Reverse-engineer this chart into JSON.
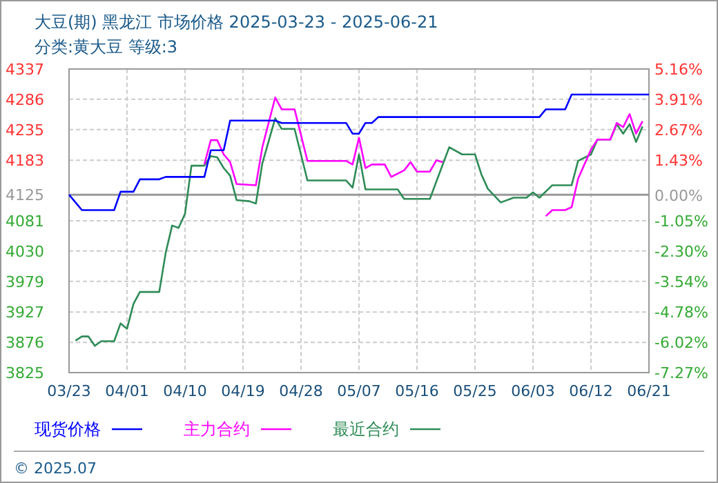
{
  "chart_data": {
    "type": "line",
    "title": "大豆(期) 黑龙江 市场价格 2025-03-23 - 2025-06-21",
    "subtitle": "分类:黄大豆 等级:3",
    "annotations": [
      "© 2025.07"
    ],
    "xlim": [
      "2025-03-23",
      "2025-06-21"
    ],
    "xticks": [
      {
        "value": "2025-03-23",
        "label": "03/23"
      },
      {
        "value": "2025-04-01",
        "label": "04/01"
      },
      {
        "value": "2025-04-10",
        "label": "04/10"
      },
      {
        "value": "2025-04-19",
        "label": "04/19"
      },
      {
        "value": "2025-04-28",
        "label": "04/28"
      },
      {
        "value": "2025-05-07",
        "label": "05/07"
      },
      {
        "value": "2025-05-16",
        "label": "05/16"
      },
      {
        "value": "2025-05-25",
        "label": "05/25"
      },
      {
        "value": "2025-06-03",
        "label": "06/03"
      },
      {
        "value": "2025-06-12",
        "label": "06/12"
      },
      {
        "value": "2025-06-21",
        "label": "06/21"
      }
    ],
    "ylim": [
      3825,
      4337
    ],
    "yticks": [
      4337,
      4286,
      4235,
      4183,
      4125,
      4081,
      4030,
      3979,
      3927,
      3876,
      3825
    ],
    "y2lim": [
      -7.27,
      5.16
    ],
    "y2ticks": [
      {
        "value": 5.16,
        "label": "5.16%"
      },
      {
        "value": 3.91,
        "label": "3.91%"
      },
      {
        "value": 2.67,
        "label": "2.67%"
      },
      {
        "value": 1.43,
        "label": "1.43%"
      },
      {
        "value": 0,
        "label": "0.00%"
      },
      {
        "value": -1.05,
        "label": "-1.05%"
      },
      {
        "value": -2.3,
        "label": "-2.30%"
      },
      {
        "value": -3.54,
        "label": "-3.54%"
      },
      {
        "value": -4.78,
        "label": "-4.78%"
      },
      {
        "value": -6.02,
        "label": "-6.02%"
      },
      {
        "value": -7.27,
        "label": "-7.27%"
      }
    ],
    "ref_lines": [
      {
        "axis": "y",
        "value": 4125,
        "color": "#999999"
      }
    ],
    "grid": true,
    "legend": "bottom",
    "series": [
      {
        "name": "现货价格",
        "color": "#0000ff",
        "x": [
          "2025-03-23",
          "2025-03-25",
          "2025-03-30",
          "2025-03-31",
          "2025-04-02",
          "2025-04-03",
          "2025-04-06",
          "2025-04-07",
          "2025-04-13",
          "2025-04-14",
          "2025-04-16",
          "2025-04-17",
          "2025-04-24",
          "2025-04-25",
          "2025-05-05",
          "2025-05-06",
          "2025-05-07",
          "2025-05-08",
          "2025-05-09",
          "2025-05-10",
          "2025-06-04",
          "2025-06-05",
          "2025-06-08",
          "2025-06-09",
          "2025-06-21"
        ],
        "values": [
          4125,
          4099,
          4099,
          4130,
          4130,
          4151,
          4151,
          4155,
          4155,
          4200,
          4200,
          4250,
          4250,
          4246,
          4246,
          4228,
          4228,
          4246,
          4246,
          4256,
          4256,
          4269,
          4269,
          4294,
          4294
        ]
      },
      {
        "name": "主力合约",
        "color": "#ff00ff",
        "x": [
          "2025-04-13",
          "2025-04-14",
          "2025-04-15",
          "2025-04-16",
          "2025-04-17",
          "2025-04-18",
          "2025-04-21",
          "2025-04-22",
          "2025-04-24",
          "2025-04-25",
          "2025-04-27",
          "2025-04-29",
          "2025-05-05",
          "2025-05-06",
          "2025-05-07",
          "2025-05-08",
          "2025-05-09",
          "2025-05-11",
          "2025-05-12",
          "2025-05-14",
          "2025-05-15",
          "2025-05-16",
          "2025-05-18",
          "2025-05-19",
          "2025-05-20"
        ],
        "values": [
          4176,
          4217,
          4217,
          4193,
          4180,
          4143,
          4141,
          4205,
          4289,
          4269,
          4269,
          4182,
          4182,
          4176,
          4221,
          4170,
          4176,
          4176,
          4155,
          4166,
          4180,
          4164,
          4164,
          4183,
          4180
        ]
      },
      {
        "color": "#ff00ff",
        "x": [
          "2025-06-05",
          "2025-06-06",
          "2025-06-08",
          "2025-06-09",
          "2025-06-10",
          "2025-06-12",
          "2025-06-13",
          "2025-06-15",
          "2025-06-16",
          "2025-06-17",
          "2025-06-18",
          "2025-06-19",
          "2025-06-20"
        ],
        "values": [
          4089,
          4099,
          4099,
          4104,
          4152,
          4201,
          4218,
          4218,
          4246,
          4239,
          4261,
          4228,
          4249
        ]
      },
      {
        "name": "最近合约",
        "color": "#2e8b57",
        "x": [
          "2025-03-24",
          "2025-03-25",
          "2025-03-26",
          "2025-03-27",
          "2025-03-28",
          "2025-03-30",
          "2025-03-31",
          "2025-04-01",
          "2025-04-02",
          "2025-04-03",
          "2025-04-06",
          "2025-04-07",
          "2025-04-08",
          "2025-04-09",
          "2025-04-10",
          "2025-04-11",
          "2025-04-13",
          "2025-04-14",
          "2025-04-15",
          "2025-04-16",
          "2025-04-17",
          "2025-04-18",
          "2025-04-20",
          "2025-04-21",
          "2025-04-22",
          "2025-04-24",
          "2025-04-25",
          "2025-04-27",
          "2025-04-29",
          "2025-05-05",
          "2025-05-06",
          "2025-05-07",
          "2025-05-08",
          "2025-05-13",
          "2025-05-14",
          "2025-05-18",
          "2025-05-21",
          "2025-05-23",
          "2025-05-25",
          "2025-05-26",
          "2025-05-27",
          "2025-05-29",
          "2025-05-31",
          "2025-06-02",
          "2025-06-03",
          "2025-06-04",
          "2025-06-06",
          "2025-06-09",
          "2025-06-10",
          "2025-06-12",
          "2025-06-13",
          "2025-06-15",
          "2025-06-16",
          "2025-06-17",
          "2025-06-18",
          "2025-06-19",
          "2025-06-20"
        ],
        "values": [
          3879,
          3886,
          3886,
          3870,
          3878,
          3878,
          3908,
          3899,
          3941,
          3961,
          3961,
          4027,
          4073,
          4069,
          4093,
          4174,
          4174,
          4190,
          4188,
          4170,
          4157,
          4116,
          4114,
          4110,
          4178,
          4254,
          4236,
          4236,
          4149,
          4149,
          4137,
          4193,
          4134,
          4134,
          4118,
          4118,
          4205,
          4193,
          4193,
          4159,
          4135,
          4112,
          4120,
          4120,
          4129,
          4120,
          4141,
          4141,
          4182,
          4193,
          4218,
          4218,
          4244,
          4228,
          4244,
          4214,
          4240
        ]
      }
    ]
  }
}
